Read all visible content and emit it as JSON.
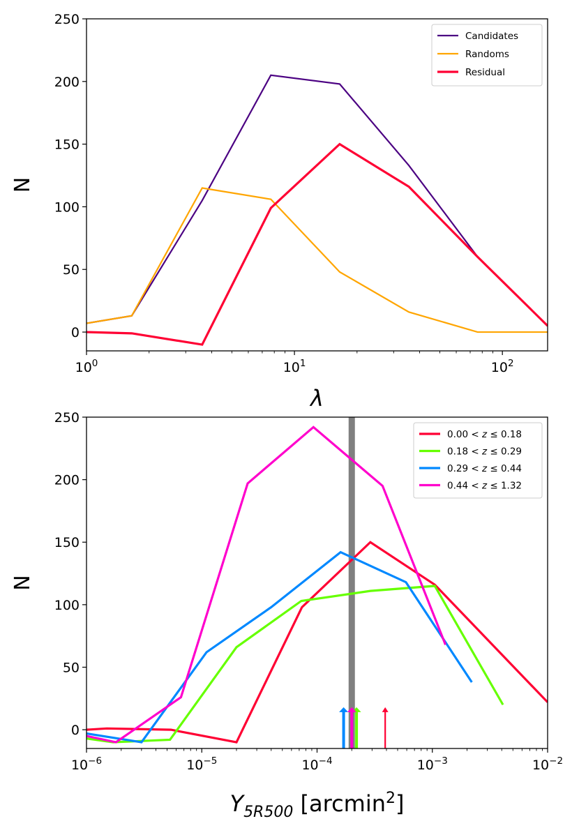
{
  "chart_data": [
    {
      "type": "line",
      "xscale": "log",
      "xlim": [
        1,
        165
      ],
      "ylim": [
        -15,
        250
      ],
      "yticks": [
        0,
        50,
        100,
        150,
        200,
        250
      ],
      "xtick_labels": [
        {
          "base": "10",
          "exp": "0",
          "value": 1
        },
        {
          "base": "10",
          "exp": "1",
          "value": 10
        },
        {
          "base": "10",
          "exp": "2",
          "value": 100
        }
      ],
      "xlabel": "λ",
      "ylabel": "N",
      "legend_position": "top-right",
      "series": [
        {
          "name": "Candidates",
          "color": "#4b0082",
          "width": 2.2,
          "x": [
            1.0,
            1.65,
            3.6,
            7.7,
            16.5,
            35.5,
            76,
            165
          ],
          "y": [
            7,
            13,
            105,
            205,
            198,
            133,
            60,
            5
          ]
        },
        {
          "name": "Randoms",
          "color": "#ffa500",
          "width": 2.2,
          "x": [
            1.0,
            1.65,
            3.6,
            7.7,
            16.5,
            35.5,
            76,
            165
          ],
          "y": [
            7,
            13,
            115,
            106,
            48,
            16,
            0,
            0
          ]
        },
        {
          "name": "Residual",
          "color": "#ff0033",
          "width": 3.2,
          "x": [
            1.0,
            1.65,
            3.6,
            7.7,
            16.5,
            35.5,
            76,
            165
          ],
          "y": [
            0,
            -1,
            -10,
            99,
            150,
            116,
            60,
            5
          ]
        }
      ]
    },
    {
      "type": "line",
      "xscale": "log",
      "xlim": [
        1e-06,
        0.01
      ],
      "ylim": [
        -15,
        250
      ],
      "yticks": [
        0,
        50,
        100,
        150,
        200,
        250
      ],
      "xtick_labels": [
        {
          "base": "10",
          "exp": "−6",
          "value": 1e-06
        },
        {
          "base": "10",
          "exp": "−5",
          "value": 1e-05
        },
        {
          "base": "10",
          "exp": "−4",
          "value": 0.0001
        },
        {
          "base": "10",
          "exp": "−3",
          "value": 0.001
        },
        {
          "base": "10",
          "exp": "−2",
          "value": 0.01
        }
      ],
      "xlabel_main": "Y",
      "xlabel_sub": "5R500",
      "xlabel_unit": "[arcmin",
      "xlabel_sup": "2",
      "xlabel_close": "]",
      "ylabel": "N",
      "legend_position": "top-right",
      "vline": {
        "x": 0.0002,
        "color": "#808080"
      },
      "series": [
        {
          "name": "0.00 < z ≤ 0.18",
          "lo": "0.00",
          "hi": "0.18",
          "color": "#ff0033",
          "width": 3.2,
          "x": [
            1e-06,
            1.5e-06,
            5.4e-06,
            2e-05,
            7.4e-05,
            0.00029,
            0.00105,
            0.01
          ],
          "y": [
            0,
            1,
            0,
            -10,
            98,
            150,
            116,
            22
          ],
          "arrow_x": 0.00039
        },
        {
          "name": "0.18 < z ≤ 0.29",
          "lo": "0.18",
          "hi": "0.29",
          "color": "#66ff00",
          "width": 3.2,
          "x": [
            1e-06,
            1.7e-06,
            5.3e-06,
            2e-05,
            7.3e-05,
            0.00029,
            0.00105,
            0.0041
          ],
          "y": [
            -7,
            -10,
            -8,
            66,
            103,
            111,
            115,
            20
          ],
          "arrow_x": 0.00022
        },
        {
          "name": "0.29 < z ≤ 0.44",
          "lo": "0.29",
          "hi": "0.44",
          "color": "#0088ff",
          "width": 3.2,
          "x": [
            1e-06,
            3e-06,
            1.1e-05,
            4e-05,
            0.00016,
            0.00059,
            0.0022
          ],
          "y": [
            -3,
            -10,
            62,
            98,
            142,
            118,
            38
          ],
          "arrow_x": 0.00017
        },
        {
          "name": "0.44 < z ≤ 1.32",
          "lo": "0.44",
          "hi": "1.32",
          "color": "#ff00cc",
          "width": 3.2,
          "x": [
            1e-06,
            1.8e-06,
            6.6e-06,
            2.5e-05,
            9.3e-05,
            0.00037,
            0.0013
          ],
          "y": [
            -5,
            -10,
            26,
            197,
            242,
            195,
            68
          ],
          "arrow_x": 0.0002
        }
      ]
    }
  ]
}
